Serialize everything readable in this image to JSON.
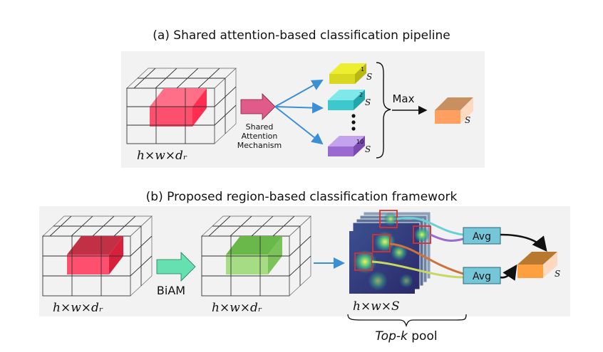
{
  "panel_a": {
    "title": "(a) Shared attention-based classification pipeline",
    "input_dims": "h×w×dᵣ",
    "arrow_label_lines": [
      "Shared",
      "Attention",
      "Mechanism"
    ],
    "vector_indices": [
      "1",
      "2",
      "10"
    ],
    "vector_symbol": "S",
    "max_label": "Max",
    "output_symbol": "S",
    "colors": {
      "cube_highlight": "#ff4f6e",
      "arrow": "#e05b8a",
      "v1": "#d8d820",
      "v2": "#3cc8cc",
      "v10": "#9a6ad0",
      "out": "#ffa060",
      "blue_arrow": "#3a8fd6"
    }
  },
  "panel_b": {
    "title": "(b) Proposed region-based classification framework",
    "input_dims": "h×w×dᵣ",
    "biam_label": "BiAM",
    "biam_output_dims": "h×w×dᵣ",
    "heatmap_dims": "h×w×S",
    "avg_labels": [
      "Avg",
      "Avg"
    ],
    "pool_label_italic": "Top-k",
    "pool_label_rest": " pool",
    "output_symbol": "S",
    "colors": {
      "cube_highlight": "#e33a55",
      "biam_arrow": "#66e0b0",
      "cube_green": "#8ed06a",
      "avg_box": "#74c6d8",
      "out": "#ffa040",
      "region_box": "#d93030"
    }
  }
}
